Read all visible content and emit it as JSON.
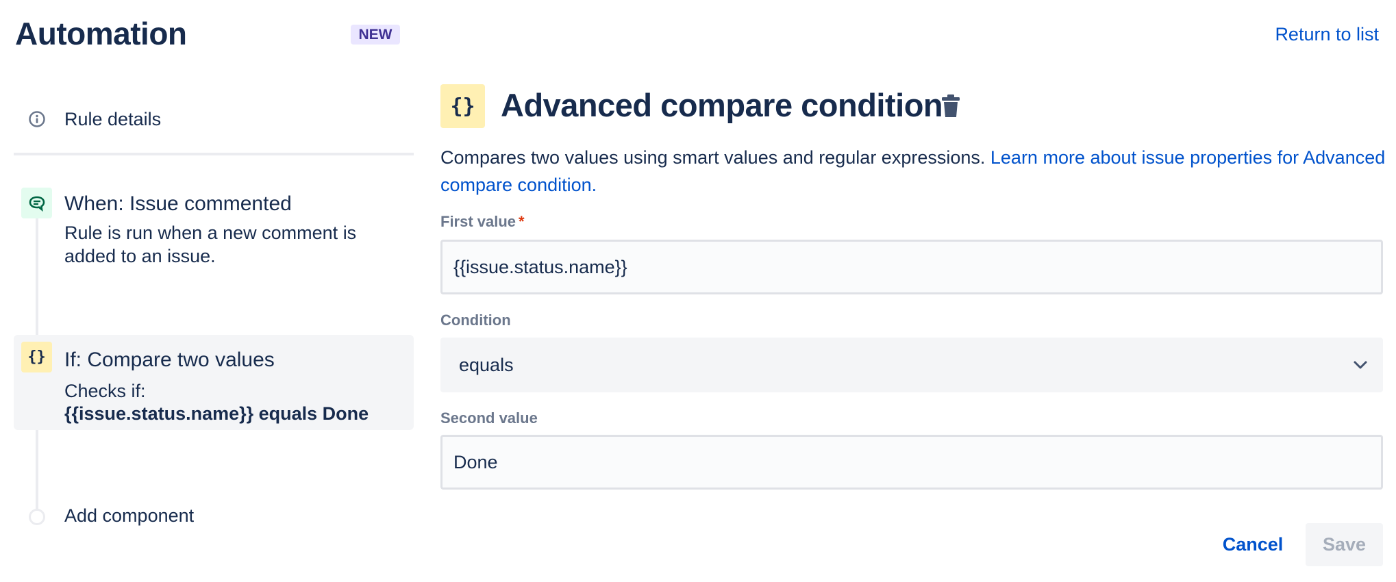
{
  "header": {
    "title": "Automation",
    "badge": "NEW",
    "return_link": "Return to list"
  },
  "sidebar": {
    "rule_details": "Rule details",
    "items": [
      {
        "title": "When: Issue commented",
        "description_line1": "Rule is run when a new comment is",
        "description_line2": "added to an issue.",
        "icon": "comment-icon"
      },
      {
        "title": "If: Compare two values",
        "description_line1": "Checks if:",
        "description_line2": "{{issue.status.name}} equals Done",
        "icon": "braces-icon"
      }
    ],
    "add_component": "Add component"
  },
  "panel": {
    "title": "Advanced compare condition",
    "description": "Compares two values using smart values and regular expressions. ",
    "learn_more": "Learn more about issue properties for Advanced compare condition.",
    "first_value_label": "First value",
    "required_mark": "*",
    "first_value": "{{issue.status.name}}",
    "condition_label": "Condition",
    "condition_value": "equals",
    "second_value_label": "Second value",
    "second_value": "Done",
    "cancel": "Cancel",
    "save": "Save"
  },
  "colors": {
    "text": "#172B4D",
    "link": "#0052CC",
    "required": "#DE350B",
    "condition_icon_bg": "#FFF0B3",
    "trigger_icon_bg": "#E3FCEF"
  }
}
